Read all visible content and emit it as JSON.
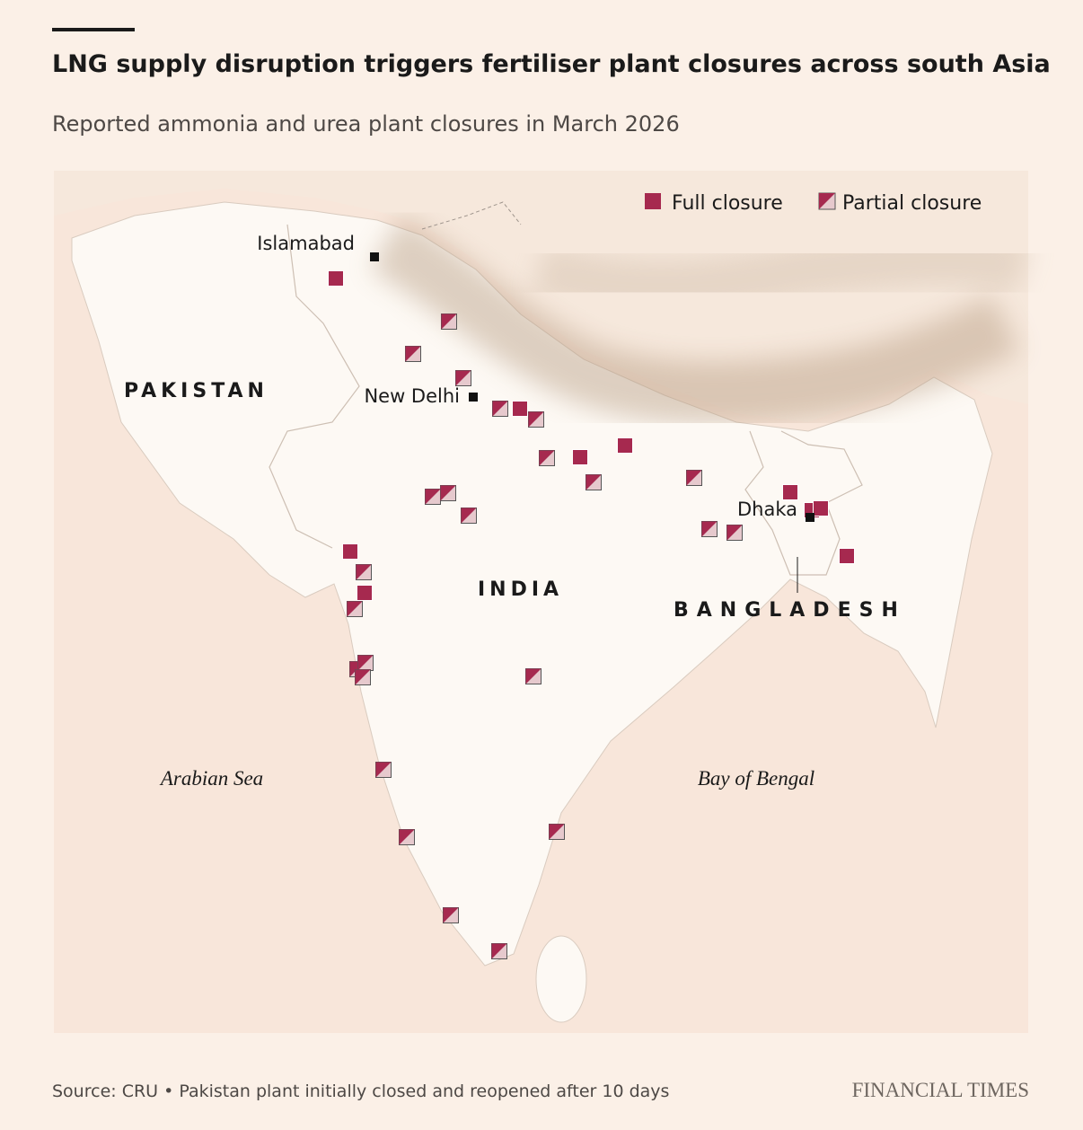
{
  "header": {
    "title": "LNG supply disruption triggers fertiliser plant closures across south Asia",
    "subtitle": "Reported ammonia and urea plant closures in March 2026"
  },
  "legend": [
    "Full closure",
    "Partial closure"
  ],
  "map_labels": {
    "countries": [
      "PAKISTAN",
      "INDIA",
      "BANGLADESH"
    ],
    "cities": [
      "Islamabad",
      "New Delhi",
      "Dhaka"
    ],
    "seas": [
      "Arabian Sea",
      "Bay of Bengal"
    ]
  },
  "footer": {
    "source": "Source: CRU • Pakistan plant initially closed and reopened after 10 days",
    "brand": "FINANCIAL TIMES"
  }
}
